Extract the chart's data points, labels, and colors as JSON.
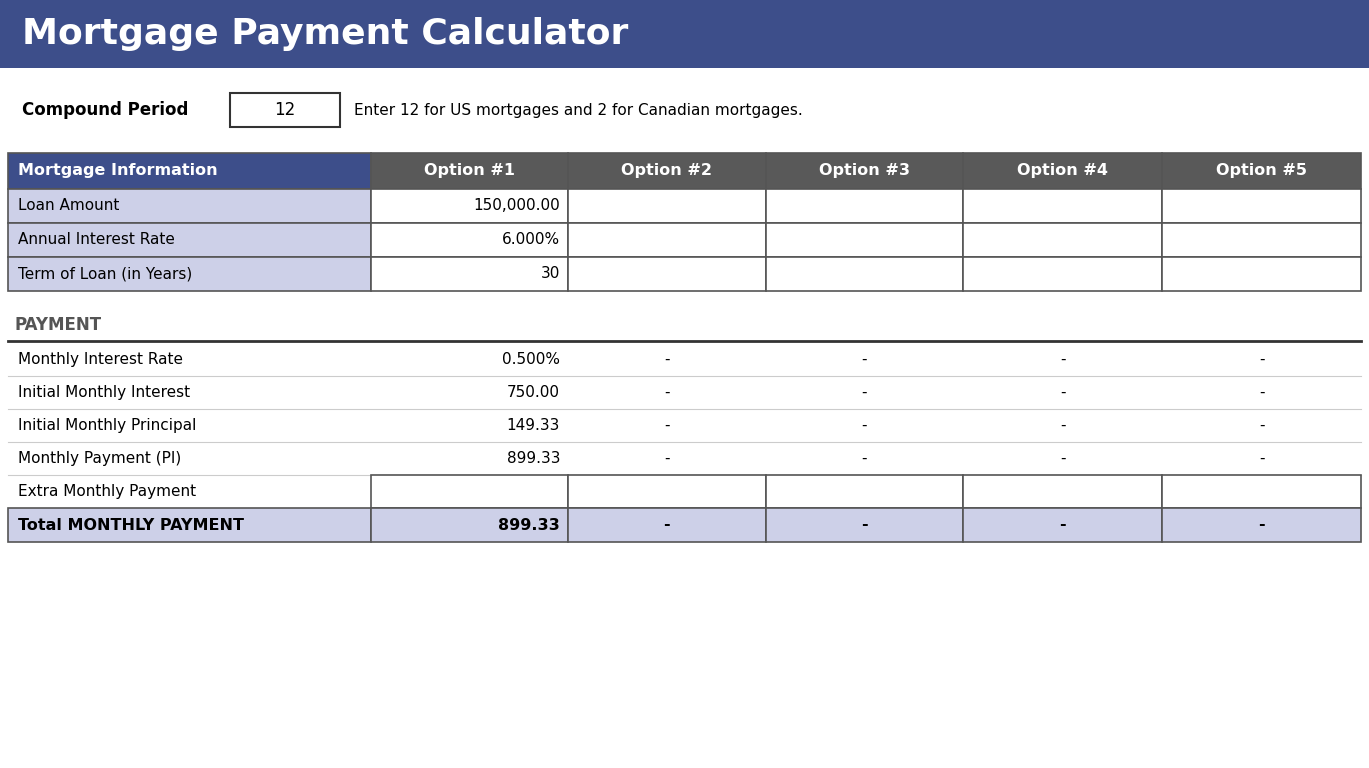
{
  "title": "Mortgage Payment Calculator",
  "title_bg": "#3d4e8a",
  "title_color": "#ffffff",
  "title_fontsize": 26,
  "compound_label": "Compound Period",
  "compound_value": "12",
  "compound_note": "Enter 12 for US mortgages and 2 for Canadian mortgages.",
  "table_header_bg": "#595959",
  "table_header_color": "#ffffff",
  "table_label_bg": "#cdd0e8",
  "total_row_bg": "#cdd0e8",
  "col_headers": [
    "Mortgage Information",
    "Option #1",
    "Option #2",
    "Option #3",
    "Option #4",
    "Option #5"
  ],
  "info_rows": [
    [
      "Loan Amount",
      "150,000.00",
      "",
      "",
      "",
      ""
    ],
    [
      "Annual Interest Rate",
      "6.000%",
      "",
      "",
      "",
      ""
    ],
    [
      "Term of Loan (in Years)",
      "30",
      "",
      "",
      "",
      ""
    ]
  ],
  "payment_section_label": "PAYMENT",
  "payment_rows": [
    [
      "Monthly Interest Rate",
      "0.500%",
      "-",
      "-",
      "-",
      "-"
    ],
    [
      "Initial Monthly Interest",
      "750.00",
      "-",
      "-",
      "-",
      "-"
    ],
    [
      "Initial Monthly Principal",
      "149.33",
      "-",
      "-",
      "-",
      "-"
    ],
    [
      "Monthly Payment (PI)",
      "899.33",
      "-",
      "-",
      "-",
      "-"
    ],
    [
      "Extra Monthly Payment",
      "",
      "",
      "",
      "",
      ""
    ]
  ],
  "total_row": [
    "Total MONTHLY PAYMENT",
    "899.33",
    "-",
    "-",
    "-",
    "-"
  ],
  "border_color": "#555555",
  "text_color": "#000000",
  "figsize": [
    13.69,
    7.68
  ],
  "dpi": 100
}
